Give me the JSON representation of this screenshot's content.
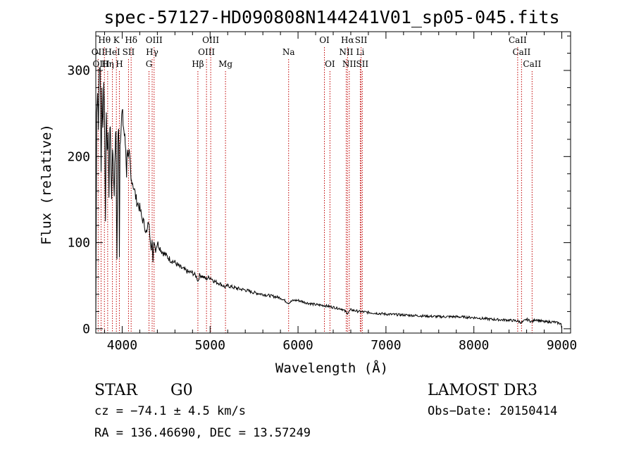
{
  "chart_data": {
    "type": "line",
    "title": "spec-57127-HD090808N144241V01_sp05-045.fits",
    "xlabel": "Wavelength (Å)",
    "ylabel": "Flux (relative)",
    "xlim": [
      3700,
      9100
    ],
    "ylim": [
      -5,
      345
    ],
    "xticks": [
      4000,
      5000,
      6000,
      7000,
      8000,
      9000
    ],
    "yticks": [
      0,
      100,
      200,
      300
    ],
    "series": [
      {
        "name": "flux",
        "x": [
          3700,
          3705,
          3710,
          3720,
          3730,
          3740,
          3750,
          3760,
          3770,
          3780,
          3790,
          3800,
          3810,
          3820,
          3830,
          3840,
          3850,
          3860,
          3870,
          3880,
          3890,
          3900,
          3910,
          3920,
          3930,
          3935,
          3940,
          3950,
          3960,
          3968,
          3975,
          3985,
          4000,
          4010,
          4020,
          4030,
          4040,
          4050,
          4060,
          4070,
          4080,
          4090,
          4101,
          4110,
          4120,
          4140,
          4160,
          4180,
          4200,
          4220,
          4240,
          4260,
          4280,
          4300,
          4320,
          4330,
          4340,
          4350,
          4360,
          4380,
          4400,
          4450,
          4500,
          4550,
          4600,
          4650,
          4700,
          4750,
          4800,
          4850,
          4861,
          4880,
          4900,
          4950,
          5000,
          5050,
          5100,
          5150,
          5175,
          5200,
          5300,
          5400,
          5500,
          5600,
          5700,
          5800,
          5890,
          5950,
          6000,
          6100,
          6200,
          6300,
          6400,
          6500,
          6563,
          6600,
          6700,
          6800,
          6900,
          7000,
          7200,
          7400,
          7600,
          7800,
          8000,
          8200,
          8400,
          8500,
          8542,
          8600,
          8662,
          8700,
          8800,
          8900,
          8990,
          9000
        ],
        "values": [
          0,
          120,
          260,
          275,
          240,
          300,
          310,
          180,
          280,
          230,
          285,
          250,
          120,
          260,
          200,
          230,
          150,
          240,
          210,
          150,
          215,
          180,
          160,
          210,
          230,
          140,
          80,
          210,
          240,
          85,
          215,
          235,
          250,
          240,
          230,
          220,
          210,
          180,
          215,
          195,
          200,
          190,
          170,
          175,
          170,
          160,
          150,
          145,
          140,
          130,
          125,
          118,
          110,
          125,
          105,
          95,
          100,
          80,
          105,
          92,
          100,
          90,
          85,
          80,
          77,
          72,
          69,
          66,
          65,
          60,
          55,
          62,
          62,
          58,
          60,
          55,
          53,
          50,
          48,
          50,
          47,
          45,
          42,
          40,
          38,
          36,
          30,
          33,
          33,
          30,
          28,
          27,
          25,
          23,
          18,
          22,
          20,
          19,
          18,
          17,
          16,
          15,
          14,
          14,
          13,
          11,
          10,
          9,
          7,
          11,
          8,
          11,
          8,
          8,
          6,
          0
        ]
      }
    ],
    "line_markers": [
      {
        "name": "Hθ",
        "wavelength": 3798,
        "row": 0
      },
      {
        "name": "K",
        "wavelength": 3934,
        "row": 0
      },
      {
        "name": "Hδ",
        "wavelength": 4102,
        "row": 0
      },
      {
        "name": "OIII",
        "wavelength": 4363,
        "row": 0
      },
      {
        "name": "OIII",
        "wavelength": 5007,
        "row": 0
      },
      {
        "name": "OI",
        "wavelength": 6300,
        "row": 0
      },
      {
        "name": "Hα",
        "wavelength": 6563,
        "row": 0
      },
      {
        "name": "SII",
        "wavelength": 6717,
        "row": 0
      },
      {
        "name": "CaII",
        "wavelength": 8498,
        "row": 0
      },
      {
        "name": "OII",
        "wavelength": 3727,
        "row": 1
      },
      {
        "name": "HeI",
        "wavelength": 3889,
        "row": 1
      },
      {
        "name": "SII",
        "wavelength": 4072,
        "row": 1
      },
      {
        "name": "Hγ",
        "wavelength": 4341,
        "row": 1
      },
      {
        "name": "OIII",
        "wavelength": 4959,
        "row": 1
      },
      {
        "name": "Na",
        "wavelength": 5893,
        "row": 1
      },
      {
        "name": "NII",
        "wavelength": 6548,
        "row": 1
      },
      {
        "name": "Li",
        "wavelength": 6708,
        "row": 1
      },
      {
        "name": "CaII",
        "wavelength": 8542,
        "row": 1
      },
      {
        "name": "OIII",
        "wavelength": 3760,
        "row": 2
      },
      {
        "name": "Hη",
        "wavelength": 3835,
        "row": 2
      },
      {
        "name": "H",
        "wavelength": 3968,
        "row": 2
      },
      {
        "name": "G",
        "wavelength": 4305,
        "row": 2
      },
      {
        "name": "Hβ",
        "wavelength": 4861,
        "row": 2
      },
      {
        "name": "Mg",
        "wavelength": 5175,
        "row": 2
      },
      {
        "name": "OI",
        "wavelength": 6363,
        "row": 2
      },
      {
        "name": "NII",
        "wavelength": 6583,
        "row": 2
      },
      {
        "name": "SII",
        "wavelength": 6731,
        "row": 2
      },
      {
        "name": "CaII",
        "wavelength": 8662,
        "row": 2
      }
    ]
  },
  "info": {
    "object_class": "STAR",
    "subclass": "G0",
    "survey": "LAMOST DR3",
    "cz": "cz = −74.1 ± 4.5 km/s",
    "obs_date": "Obs−Date: 20150414",
    "coords": "RA = 136.46690, DEC =  13.57249"
  },
  "colors": {
    "line_marker": "#c00000",
    "flux": "#000000",
    "axes": "#000000"
  }
}
